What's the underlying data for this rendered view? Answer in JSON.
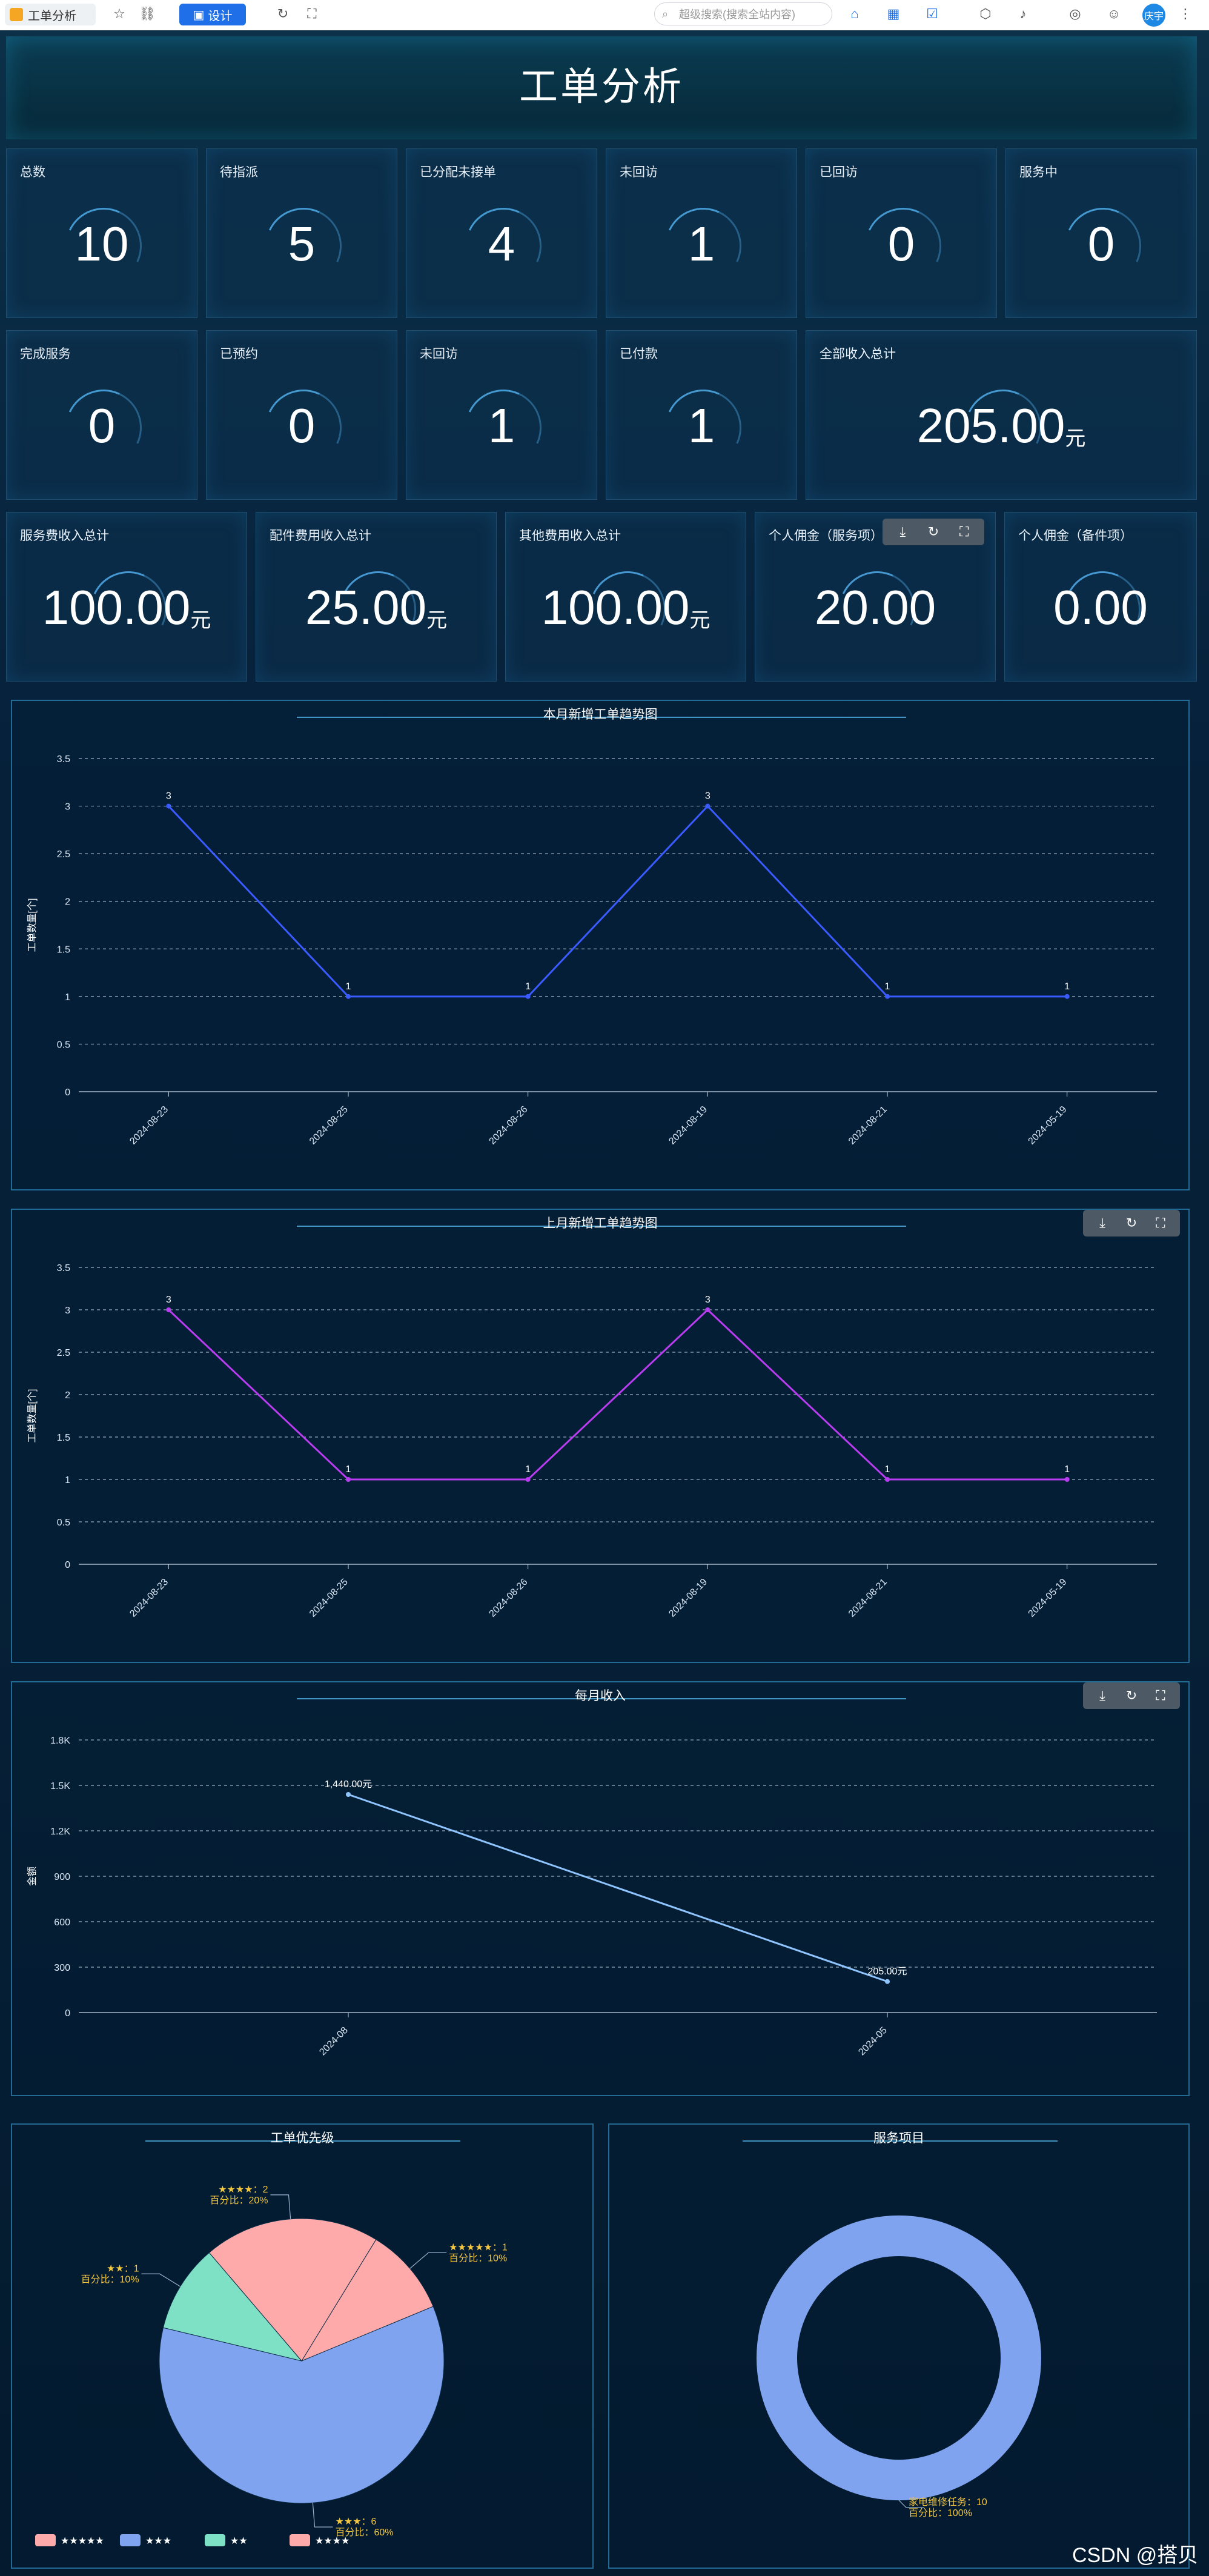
{
  "browser": {
    "tab_label": "工单分析",
    "design_label": "设计",
    "search_placeholder": "超级搜索(搜索全站内容)",
    "avatar_text": "庆宇"
  },
  "page": {
    "title": "工单分析"
  },
  "stats_row1": [
    {
      "label": "总数",
      "value": "10"
    },
    {
      "label": "待指派",
      "value": "5"
    },
    {
      "label": "已分配未接单",
      "value": "4"
    },
    {
      "label": "未回访",
      "value": "1"
    },
    {
      "label": "已回访",
      "value": "0"
    },
    {
      "label": "服务中",
      "value": "0"
    }
  ],
  "stats_row2": [
    {
      "label": "完成服务",
      "value": "0"
    },
    {
      "label": "已预约",
      "value": "0"
    },
    {
      "label": "未回访",
      "value": "1"
    },
    {
      "label": "已付款",
      "value": "1"
    },
    {
      "label": "全部收入总计",
      "value": "205.00",
      "unit": "元"
    }
  ],
  "stats_row3": [
    {
      "label": "服务费收入总计",
      "value": "100.00",
      "unit": "元"
    },
    {
      "label": "配件费用收入总计",
      "value": "25.00",
      "unit": "元"
    },
    {
      "label": "其他费用收入总计",
      "value": "100.00",
      "unit": "元"
    },
    {
      "label": "个人佣金（服务项）",
      "value": "20.00",
      "unit": ""
    },
    {
      "label": "个人佣金（备件项）",
      "value": "0.00",
      "unit": ""
    }
  ],
  "chart_data": [
    {
      "type": "line",
      "title": "本月新增工单趋势图",
      "ylabel": "工单数量[个]",
      "categories": [
        "2024-08-23",
        "2024-08-25",
        "2024-08-26",
        "2024-08-19",
        "2024-08-21",
        "2024-05-19"
      ],
      "series": [
        {
          "values": [
            3,
            1,
            1,
            3,
            1,
            1
          ]
        }
      ],
      "ylim": [
        0,
        3.5
      ],
      "yticks": [
        "0",
        "0.5",
        "1",
        "1.5",
        "2",
        "2.5",
        "3",
        "3.5"
      ],
      "data_labels": [
        "3",
        "1",
        "1",
        "3",
        "1",
        "1"
      ],
      "color": "#3a5bff",
      "grid": true
    },
    {
      "type": "line",
      "title": "上月新增工单趋势图",
      "ylabel": "工单数量[个]",
      "categories": [
        "2024-08-23",
        "2024-08-25",
        "2024-08-26",
        "2024-08-19",
        "2024-08-21",
        "2024-05-19"
      ],
      "series": [
        {
          "values": [
            3,
            1,
            1,
            3,
            1,
            1
          ]
        }
      ],
      "ylim": [
        0,
        3.5
      ],
      "yticks": [
        "0",
        "0.5",
        "1",
        "1.5",
        "2",
        "2.5",
        "3",
        "3.5"
      ],
      "data_labels": [
        "3",
        "1",
        "1",
        "3",
        "1",
        "1"
      ],
      "color": "#b93cf0",
      "grid": true
    },
    {
      "type": "line",
      "title": "每月收入",
      "ylabel": "金额",
      "categories": [
        "2024-08",
        "2024-05"
      ],
      "series": [
        {
          "values": [
            1440,
            205
          ]
        }
      ],
      "ylim": [
        0,
        1800
      ],
      "yticks": [
        "0",
        "300",
        "600",
        "900",
        "1.2K",
        "1.5K",
        "1.8K"
      ],
      "data_labels": [
        "1,440.00元",
        "205.00元"
      ],
      "color": "#8fc4ff",
      "grid": true
    },
    {
      "type": "pie",
      "title": "工单优先级",
      "slices": [
        {
          "name": "★★★★★",
          "value": 1,
          "percent_label": "百分比：10%",
          "label": "★★★★★：1",
          "color": "#ffaaaa"
        },
        {
          "name": "★★★",
          "value": 6,
          "percent_label": "百分比：60%",
          "label": "★★★：6",
          "color": "#7fa3ee"
        },
        {
          "name": "★★",
          "value": 1,
          "percent_label": "百分比：10%",
          "label": "★★：1",
          "color": "#7ee0c4"
        },
        {
          "name": "★★★★",
          "value": 2,
          "percent_label": "百分比：20%",
          "label": "★★★★：2",
          "color": "#ffaaaa"
        }
      ],
      "legend": [
        "★★★★★",
        "★★★",
        "★★",
        "★★★★"
      ],
      "legend_placement": "bottom-left"
    },
    {
      "type": "pie",
      "title": "服务项目",
      "donut": true,
      "slices": [
        {
          "name": "家电维修任务",
          "value": 10,
          "label": "家电维修任务：10",
          "percent_label": "百分比：100%",
          "color": "#7fa3ee"
        }
      ]
    }
  ],
  "watermark": "CSDN @搭贝"
}
